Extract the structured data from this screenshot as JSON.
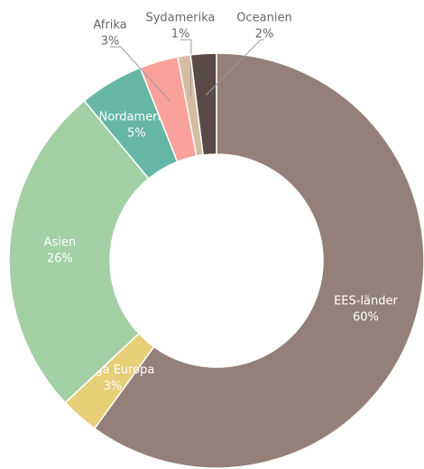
{
  "chart_data": {
    "type": "donut",
    "categories": [
      "EES-länder",
      "Övriga Europa",
      "Asien",
      "Nordamerika",
      "Afrika",
      "Sydamerika",
      "Oceanien"
    ],
    "values": [
      60,
      3,
      26,
      5,
      3,
      1,
      2
    ],
    "value_labels": [
      "60%",
      "3%",
      "26%",
      "5%",
      "3%",
      "1%",
      "2%"
    ],
    "colors": [
      "#948079",
      "#e5cf77",
      "#a3cfa5",
      "#66b6a5",
      "#f9a19a",
      "#d5bca3",
      "#594a48"
    ]
  }
}
